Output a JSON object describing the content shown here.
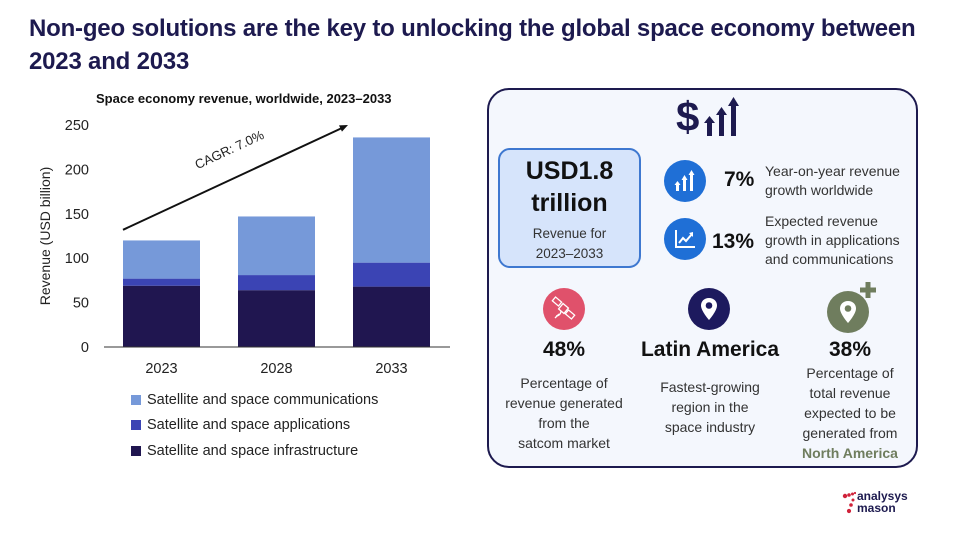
{
  "page": {
    "title": "Non-geo solutions are the key to unlocking the global space economy between 2023 and 2033"
  },
  "chart_data": {
    "type": "bar",
    "stacked": true,
    "title": "Space economy revenue, worldwide, 2023–2033",
    "xlabel": "",
    "ylabel": "Revenue (USD billion)",
    "ylim": [
      0,
      250
    ],
    "yticks": [
      0,
      50,
      100,
      150,
      200,
      250
    ],
    "categories": [
      "2023",
      "2028",
      "2033"
    ],
    "series": [
      {
        "name": "Satellite and space infrastructure",
        "color": "#201650",
        "values": [
          69,
          64,
          68
        ]
      },
      {
        "name": "Satellite and space applications",
        "color": "#3b44b4",
        "values": [
          8,
          17,
          27
        ]
      },
      {
        "name": "Satellite and space communications",
        "color": "#7699d9",
        "values": [
          43,
          66,
          141
        ]
      }
    ],
    "legend_order": [
      "Satellite and space communications",
      "Satellite and space applications",
      "Satellite and space infrastructure"
    ],
    "legend_position": "bottom",
    "grid": false,
    "annotations": [
      {
        "text": "CAGR: 7.0%",
        "type": "arrow",
        "from": {
          "x": "2023",
          "y": 132
        },
        "to": {
          "x": "2033",
          "y": 250
        }
      }
    ]
  },
  "panel": {
    "top_icon": "dollar-growth-icon",
    "revenue_box": {
      "value_line1": "USD1.8",
      "value_line2": "trillion",
      "label_line1": "Revenue for",
      "label_line2": "2023–2033"
    },
    "stats": [
      {
        "icon": "bar-growth-icon",
        "icon_color": "#1f6fd6",
        "value": "7%",
        "desc_line1": "Year-on-year revenue",
        "desc_line2": "growth worldwide",
        "desc_line3": ""
      },
      {
        "icon": "line-chart-icon",
        "icon_color": "#1f6fd6",
        "value": "13%",
        "desc_line1": "Expected revenue",
        "desc_line2": "growth in applications",
        "desc_line3": "and communications"
      }
    ],
    "columns": [
      {
        "icon": "satellite-icon",
        "icon_color": "#e0516b",
        "value": "48%",
        "desc": [
          "Percentage of",
          "revenue generated",
          "from the",
          "satcom market"
        ]
      },
      {
        "icon": "location-pin-icon",
        "icon_color": "#1d1a5e",
        "value": "Latin America",
        "desc": [
          "Fastest-growing",
          "region in the",
          "space industry"
        ]
      },
      {
        "icon": "location-pin-plus-icon",
        "icon_color": "#6f7d5e",
        "value": "38%",
        "desc": [
          "Percentage of",
          "total revenue",
          "expected to be",
          "generated from"
        ],
        "highlight": "North America",
        "highlight_color": "#6f7d5e"
      }
    ]
  },
  "logo": {
    "line1": "analysys",
    "line2": "mason",
    "accent": "#d0223a"
  }
}
